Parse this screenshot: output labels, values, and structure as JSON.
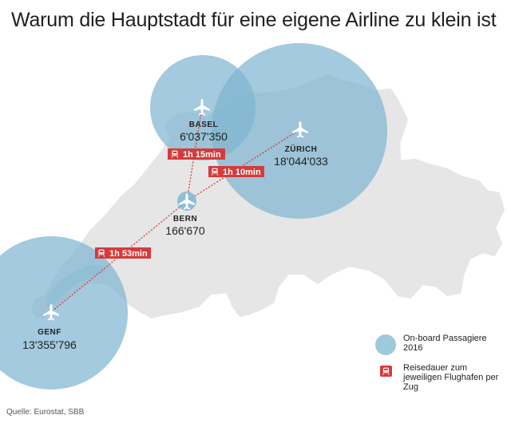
{
  "title": "Warum die Hauptstadt für eine eigene Airline zu klein ist",
  "cities": [
    {
      "id": "basel",
      "name": "BASEL",
      "passengers": "6'037'350"
    },
    {
      "id": "zuerich",
      "name": "ZÜRICH",
      "passengers": "18'044'033"
    },
    {
      "id": "bern",
      "name": "BERN",
      "passengers": "166'670"
    },
    {
      "id": "genf",
      "name": "GENF",
      "passengers": "13'355'796"
    }
  ],
  "routes": [
    {
      "from": "Bern",
      "to": "Basel",
      "duration": "1h 15min"
    },
    {
      "from": "Bern",
      "to": "Zürich",
      "duration": "1h 10min"
    },
    {
      "from": "Bern",
      "to": "Genf",
      "duration": "1h 53min"
    }
  ],
  "legend": {
    "bubble_label": "On-board Passagiere 2016",
    "train_label": "Reisedauer zum jeweiligen Flughafen per Zug"
  },
  "source": "Quelle: Eurostat, SBB",
  "colors": {
    "bubble": "#7fb6d1",
    "land": "#e6e6e6",
    "train": "#d63a3a",
    "route": "#d63a3a"
  },
  "icons": {
    "airport": "airplane-icon",
    "train": "train-icon"
  }
}
